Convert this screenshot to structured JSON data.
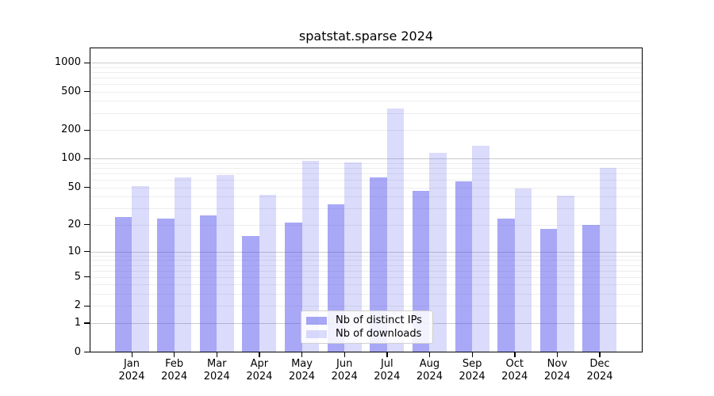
{
  "chart_data": {
    "type": "bar",
    "title": "spatstat.sparse 2024",
    "categories": [
      "Jan 2024",
      "Feb 2024",
      "Mar 2024",
      "Apr 2024",
      "May 2024",
      "Jun 2024",
      "Jul 2024",
      "Aug 2024",
      "Sep 2024",
      "Oct 2024",
      "Nov 2024",
      "Dec 2024"
    ],
    "series": [
      {
        "name": "Nb of distinct IPs",
        "values": [
          24,
          23,
          25,
          15,
          21,
          33,
          64,
          46,
          58,
          23,
          18,
          20
        ]
      },
      {
        "name": "Nb of downloads",
        "values": [
          52,
          64,
          67,
          42,
          96,
          92,
          335,
          115,
          137,
          49,
          41,
          80
        ]
      }
    ],
    "y_axis": {
      "scale": "log10(value+1)",
      "tick_values": [
        1000,
        500,
        200,
        100,
        50,
        20,
        10,
        5,
        2,
        1,
        0
      ],
      "ylim": [
        0,
        1430
      ]
    },
    "xlabel": "",
    "ylabel": "",
    "grid": "on",
    "legend_position": "inside-bottom-center"
  },
  "colors": {
    "bar_ips_fill": "rgba(73,73,236,0.48)",
    "bar_downloads_fill": "rgba(73,73,236,0.20)",
    "bar_ips_hex_on_white": "#a9a9f3",
    "bar_downloads_hex_on_white": "#dadaf8",
    "grid_major": "#cccccc",
    "grid_minor": "#ededed",
    "axis": "#000000"
  }
}
